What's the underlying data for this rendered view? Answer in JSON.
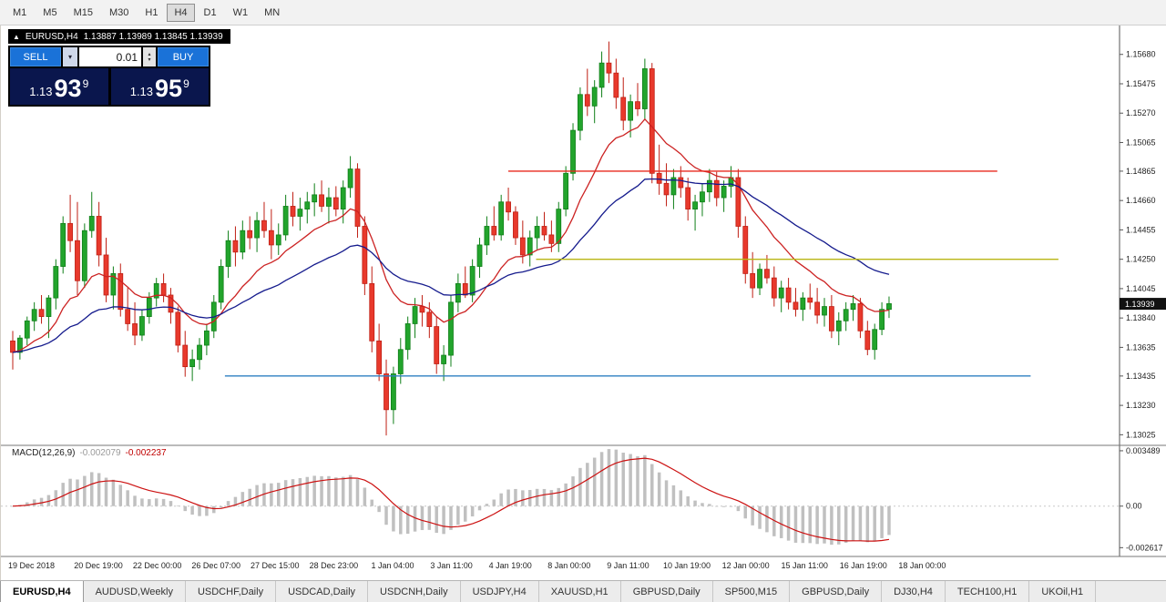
{
  "toolbar": {
    "timeframes": [
      "M1",
      "M5",
      "M15",
      "M30",
      "H1",
      "H4",
      "D1",
      "W1",
      "MN"
    ],
    "active": "H4"
  },
  "chart_title": {
    "icon": "▲",
    "symbol_tf": "EURUSD,H4",
    "ohlc": "1.13887 1.13989 1.13845 1.13939"
  },
  "trade_panel": {
    "sell_label": "SELL",
    "buy_label": "BUY",
    "volume": "0.01",
    "dropdown_icon": "▾",
    "spin_up_icon": "▴",
    "spin_down_icon": "▾",
    "bid": {
      "prefix": "1.13",
      "big": "93",
      "sup": "9"
    },
    "ask": {
      "prefix": "1.13",
      "big": "95",
      "sup": "9"
    }
  },
  "chart_data": {
    "type": "candlestick",
    "symbol": "EURUSD",
    "timeframe": "H4",
    "up_color": "#22a42c",
    "up_stroke": "#0f7f18",
    "down_color": "#e8392c",
    "down_stroke": "#bf1f14",
    "price_axis": {
      "max": 1.1585,
      "min": 1.1297,
      "ticks": [
        "1.15680",
        "1.15475",
        "1.15270",
        "1.15065",
        "1.14865",
        "1.14660",
        "1.14455",
        "1.14250",
        "1.14045",
        "1.13840",
        "1.13635",
        "1.13435",
        "1.13230",
        "1.13025"
      ],
      "current_label": "1.13939",
      "current_value": 1.13939
    },
    "time_axis": {
      "labels": [
        "19 Dec 2018",
        "20 Dec 19:00",
        "22 Dec 00:00",
        "26 Dec 07:00",
        "27 Dec 15:00",
        "28 Dec 23:00",
        "1 Jan 04:00",
        "3 Jan 11:00",
        "4 Jan 19:00",
        "8 Jan 00:00",
        "9 Jan 11:00",
        "10 Jan 19:00",
        "12 Jan 00:00",
        "15 Jan 11:00",
        "16 Jan 19:00",
        "18 Jan 00:00"
      ]
    },
    "hlines": [
      {
        "value": 1.14865,
        "color": "#e8291f",
        "x_start": 0.45,
        "x_end": 0.89
      },
      {
        "value": 1.1425,
        "color": "#b9b514",
        "x_start": 0.475,
        "x_end": 0.945
      },
      {
        "value": 1.13435,
        "color": "#2e7fc2",
        "x_start": 0.195,
        "x_end": 0.92
      }
    ],
    "moving_averages": [
      {
        "period": 13,
        "color": "#cc2222"
      },
      {
        "period": 34,
        "color": "#151b8d"
      }
    ],
    "macd": {
      "name": "MACD(12,26,9)",
      "main_value": "-0.002079",
      "signal_value": "-0.002237",
      "fast": 12,
      "slow": 26,
      "signal": 9,
      "bar_color": "#c0c0c0",
      "signal_color": "#cc1111",
      "range": [
        -0.003,
        0.0036
      ],
      "ticks": [
        {
          "label": "0.003489",
          "value": 0.003489
        },
        {
          "label": "0.00",
          "value": 0
        },
        {
          "label": "-0.002617",
          "value": -0.002617
        }
      ]
    },
    "candles": [
      [
        1.1368,
        1.1375,
        1.1348,
        1.136
      ],
      [
        1.136,
        1.1372,
        1.1355,
        1.137
      ],
      [
        1.137,
        1.1385,
        1.1365,
        1.1382
      ],
      [
        1.1382,
        1.1395,
        1.1375,
        1.139
      ],
      [
        1.139,
        1.14,
        1.138,
        1.1385
      ],
      [
        1.1385,
        1.14,
        1.137,
        1.1398
      ],
      [
        1.1398,
        1.1425,
        1.139,
        1.142
      ],
      [
        1.142,
        1.1455,
        1.1415,
        1.145
      ],
      [
        1.145,
        1.147,
        1.143,
        1.1438
      ],
      [
        1.1438,
        1.1465,
        1.14,
        1.141
      ],
      [
        1.141,
        1.145,
        1.1405,
        1.1445
      ],
      [
        1.1445,
        1.1472,
        1.144,
        1.1455
      ],
      [
        1.1455,
        1.1465,
        1.142,
        1.1428
      ],
      [
        1.1428,
        1.144,
        1.1395,
        1.14
      ],
      [
        1.14,
        1.142,
        1.139,
        1.1415
      ],
      [
        1.1415,
        1.1422,
        1.1385,
        1.139
      ],
      [
        1.139,
        1.1405,
        1.1375,
        1.138
      ],
      [
        1.138,
        1.1395,
        1.1365,
        1.1372
      ],
      [
        1.1372,
        1.139,
        1.1368,
        1.1385
      ],
      [
        1.1385,
        1.1402,
        1.138,
        1.1398
      ],
      [
        1.1398,
        1.1412,
        1.1392,
        1.1408
      ],
      [
        1.1408,
        1.1415,
        1.1395,
        1.14
      ],
      [
        1.14,
        1.1405,
        1.138,
        1.1388
      ],
      [
        1.1388,
        1.1392,
        1.136,
        1.1365
      ],
      [
        1.1365,
        1.1375,
        1.1343,
        1.135
      ],
      [
        1.135,
        1.1362,
        1.134,
        1.1355
      ],
      [
        1.1355,
        1.137,
        1.1348,
        1.1365
      ],
      [
        1.1365,
        1.138,
        1.1358,
        1.1375
      ],
      [
        1.1375,
        1.14,
        1.137,
        1.1395
      ],
      [
        1.1395,
        1.1425,
        1.139,
        1.142
      ],
      [
        1.142,
        1.1445,
        1.1412,
        1.1438
      ],
      [
        1.1438,
        1.1448,
        1.142,
        1.143
      ],
      [
        1.143,
        1.1452,
        1.1425,
        1.1445
      ],
      [
        1.1445,
        1.1455,
        1.1432,
        1.144
      ],
      [
        1.144,
        1.1458,
        1.143,
        1.1452
      ],
      [
        1.1452,
        1.1465,
        1.144,
        1.1445
      ],
      [
        1.1445,
        1.146,
        1.1425,
        1.1435
      ],
      [
        1.1435,
        1.145,
        1.1428,
        1.1442
      ],
      [
        1.1442,
        1.147,
        1.1438,
        1.1462
      ],
      [
        1.1462,
        1.1472,
        1.1448,
        1.1455
      ],
      [
        1.1455,
        1.1468,
        1.1445,
        1.146
      ],
      [
        1.146,
        1.1472,
        1.145,
        1.1465
      ],
      [
        1.1465,
        1.1478,
        1.1455,
        1.147
      ],
      [
        1.147,
        1.148,
        1.1458,
        1.1462
      ],
      [
        1.1462,
        1.1475,
        1.145,
        1.1468
      ],
      [
        1.1468,
        1.1476,
        1.1455,
        1.146
      ],
      [
        1.146,
        1.148,
        1.145,
        1.1475
      ],
      [
        1.1475,
        1.1497,
        1.1468,
        1.1488
      ],
      [
        1.1488,
        1.1492,
        1.144,
        1.1448
      ],
      [
        1.1448,
        1.1455,
        1.14,
        1.1408
      ],
      [
        1.1408,
        1.142,
        1.136,
        1.1368
      ],
      [
        1.1368,
        1.138,
        1.134,
        1.1345
      ],
      [
        1.1345,
        1.1355,
        1.1302,
        1.132
      ],
      [
        1.132,
        1.135,
        1.131,
        1.1345
      ],
      [
        1.1345,
        1.137,
        1.1338,
        1.1362
      ],
      [
        1.1362,
        1.1385,
        1.1355,
        1.138
      ],
      [
        1.138,
        1.1398,
        1.137,
        1.1392
      ],
      [
        1.1392,
        1.14,
        1.1378,
        1.1388
      ],
      [
        1.1388,
        1.1395,
        1.137,
        1.1378
      ],
      [
        1.1378,
        1.1385,
        1.1345,
        1.1352
      ],
      [
        1.1352,
        1.1365,
        1.134,
        1.1358
      ],
      [
        1.1358,
        1.14,
        1.135,
        1.1395
      ],
      [
        1.1395,
        1.1415,
        1.1388,
        1.1408
      ],
      [
        1.1408,
        1.142,
        1.1398,
        1.14
      ],
      [
        1.14,
        1.1425,
        1.1395,
        1.142
      ],
      [
        1.142,
        1.144,
        1.1412,
        1.1435
      ],
      [
        1.1435,
        1.1455,
        1.1428,
        1.1448
      ],
      [
        1.1448,
        1.1462,
        1.1438,
        1.1442
      ],
      [
        1.1442,
        1.147,
        1.1438,
        1.1465
      ],
      [
        1.1465,
        1.1475,
        1.1452,
        1.1458
      ],
      [
        1.1458,
        1.1462,
        1.1435,
        1.144
      ],
      [
        1.144,
        1.1452,
        1.1422,
        1.1428
      ],
      [
        1.1428,
        1.1445,
        1.142,
        1.144
      ],
      [
        1.144,
        1.1455,
        1.1432,
        1.1448
      ],
      [
        1.1448,
        1.1458,
        1.1438,
        1.1442
      ],
      [
        1.1442,
        1.1452,
        1.143,
        1.1436
      ],
      [
        1.1436,
        1.1465,
        1.143,
        1.146
      ],
      [
        1.146,
        1.149,
        1.1455,
        1.1485
      ],
      [
        1.1485,
        1.152,
        1.148,
        1.1515
      ],
      [
        1.1515,
        1.1545,
        1.1508,
        1.154
      ],
      [
        1.154,
        1.1558,
        1.1525,
        1.1532
      ],
      [
        1.1532,
        1.155,
        1.152,
        1.1545
      ],
      [
        1.1545,
        1.157,
        1.1538,
        1.1562
      ],
      [
        1.1562,
        1.1577,
        1.1548,
        1.1555
      ],
      [
        1.1555,
        1.1565,
        1.153,
        1.1538
      ],
      [
        1.1538,
        1.1552,
        1.1515,
        1.1522
      ],
      [
        1.1522,
        1.154,
        1.151,
        1.1535
      ],
      [
        1.1535,
        1.1548,
        1.1525,
        1.153
      ],
      [
        1.153,
        1.1565,
        1.1522,
        1.1558
      ],
      [
        1.1558,
        1.1562,
        1.1478,
        1.1485
      ],
      [
        1.1485,
        1.1505,
        1.147,
        1.1478
      ],
      [
        1.1478,
        1.1492,
        1.1462,
        1.147
      ],
      [
        1.147,
        1.1488,
        1.146,
        1.1482
      ],
      [
        1.1482,
        1.149,
        1.1468,
        1.1475
      ],
      [
        1.1475,
        1.1482,
        1.1452,
        1.146
      ],
      [
        1.146,
        1.147,
        1.1445,
        1.1465
      ],
      [
        1.1465,
        1.1478,
        1.1455,
        1.1472
      ],
      [
        1.1472,
        1.1488,
        1.1465,
        1.148
      ],
      [
        1.148,
        1.1486,
        1.1462,
        1.1468
      ],
      [
        1.1468,
        1.148,
        1.1458,
        1.1476
      ],
      [
        1.1476,
        1.149,
        1.1468,
        1.1482
      ],
      [
        1.1482,
        1.1488,
        1.144,
        1.1448
      ],
      [
        1.1448,
        1.1455,
        1.1408,
        1.1415
      ],
      [
        1.1415,
        1.143,
        1.1398,
        1.1405
      ],
      [
        1.1405,
        1.1422,
        1.14,
        1.1418
      ],
      [
        1.1418,
        1.1428,
        1.1408,
        1.1412
      ],
      [
        1.1412,
        1.142,
        1.1392,
        1.1398
      ],
      [
        1.1398,
        1.141,
        1.1388,
        1.1405
      ],
      [
        1.1405,
        1.1412,
        1.139,
        1.1395
      ],
      [
        1.1395,
        1.1405,
        1.1385,
        1.139
      ],
      [
        1.139,
        1.1402,
        1.1382,
        1.1398
      ],
      [
        1.1398,
        1.1408,
        1.139,
        1.1395
      ],
      [
        1.1395,
        1.1405,
        1.138,
        1.1386
      ],
      [
        1.1386,
        1.1398,
        1.1378,
        1.1392
      ],
      [
        1.1392,
        1.14,
        1.137,
        1.1375
      ],
      [
        1.1375,
        1.1388,
        1.1365,
        1.1382
      ],
      [
        1.1382,
        1.1395,
        1.1375,
        1.139
      ],
      [
        1.139,
        1.14,
        1.1382,
        1.1394
      ],
      [
        1.1394,
        1.1398,
        1.137,
        1.1375
      ],
      [
        1.1375,
        1.1382,
        1.1358,
        1.1362
      ],
      [
        1.1362,
        1.138,
        1.1355,
        1.1376
      ],
      [
        1.1376,
        1.1395,
        1.1372,
        1.139
      ],
      [
        1.139,
        1.1399,
        1.1384,
        1.1394
      ]
    ]
  },
  "tabs": {
    "active_index": 0,
    "items": [
      "EURUSD,H4",
      "AUDUSD,Weekly",
      "USDCHF,Daily",
      "USDCAD,Daily",
      "USDCNH,Daily",
      "USDJPY,H4",
      "XAUUSD,H1",
      "GBPUSD,Daily",
      "SP500,M15",
      "GBPUSD,Daily",
      "DJ30,H4",
      "TECH100,H1",
      "UKOil,H1"
    ]
  }
}
